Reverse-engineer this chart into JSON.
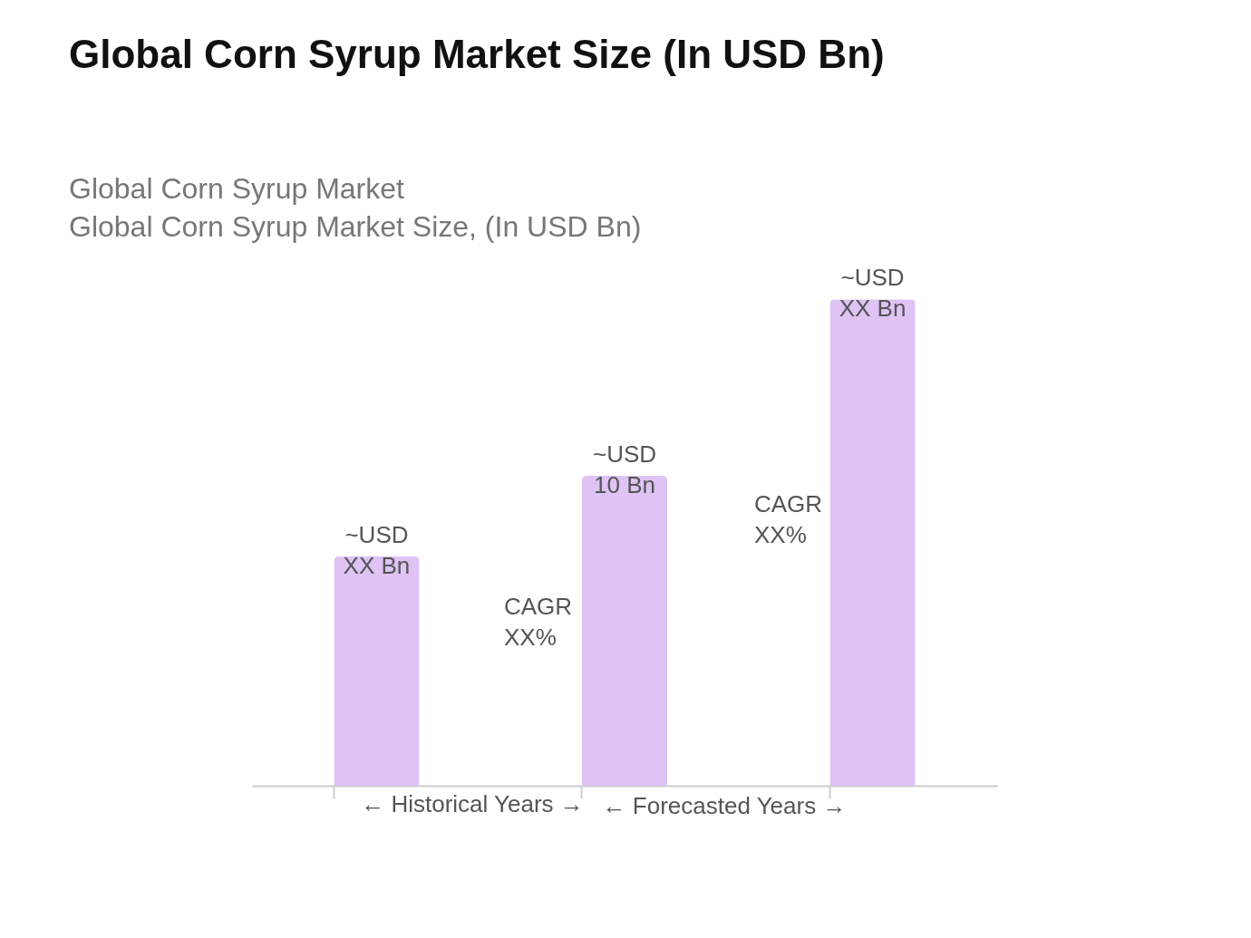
{
  "chart_data": {
    "type": "bar",
    "title": "Global Corn Syrup Market Size (In USD Bn)",
    "subtitle": "Global Corn Syrup Market\nGlobal Corn Syrup Market Size, (In USD Bn)",
    "categories": [
      null,
      null,
      null
    ],
    "values": [
      7.4,
      10,
      15.7
    ],
    "color": "#dfc3f5",
    "value_labels": [
      "~USD\nXX Bn",
      "~USD\n10 Bn",
      "~USD\nXX Bn"
    ],
    "annotations": [
      "CAGR\nXX%",
      "CAGR\nXX%",
      "← Historical Years →",
      "← Forecasted Years →"
    ],
    "tick_labels": false
  }
}
